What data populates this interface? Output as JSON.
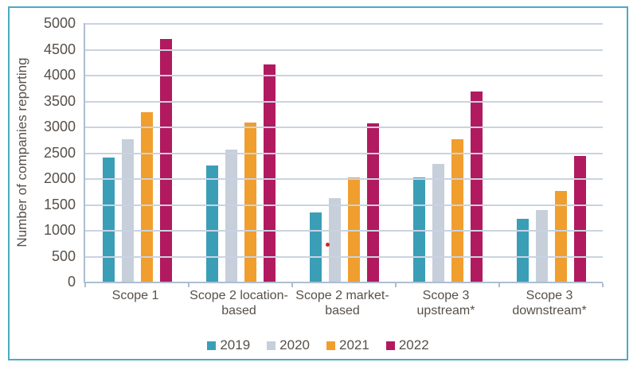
{
  "chart_data": {
    "type": "bar",
    "title": "",
    "xlabel": "",
    "ylabel": "Number of companies reporting",
    "ylim": [
      0,
      5000
    ],
    "ytick_step": 500,
    "grid": true,
    "legend_position": "bottom",
    "categories": [
      "Scope 1",
      "Scope 2 location-\nbased",
      "Scope 2 market-\nbased",
      "Scope 3\nupstream*",
      "Scope 3\ndownstream*"
    ],
    "series": [
      {
        "name": "2019",
        "color": "#3b9eb7",
        "values": [
          2400,
          2250,
          1340,
          2010,
          1220
        ]
      },
      {
        "name": "2020",
        "color": "#c6cfda",
        "values": [
          2750,
          2560,
          1620,
          2280,
          1390
        ]
      },
      {
        "name": "2021",
        "color": "#f09e2e",
        "values": [
          3270,
          3070,
          2020,
          2750,
          1750
        ]
      },
      {
        "name": "2022",
        "color": "#b11a5f",
        "values": [
          4700,
          4200,
          3060,
          3670,
          2430
        ]
      }
    ],
    "annotations": [
      {
        "type": "dot",
        "description": "small stray red dot on 2020 bar of Scope 2 market-based",
        "x_percent": 46.8,
        "value": 710
      }
    ]
  },
  "colors": {
    "frame_border": "#4aacc3",
    "gridline": "#c9d3e1",
    "axis_line": "#aebdd0",
    "text": "#57504a",
    "stray_dot": "#cf2722"
  }
}
